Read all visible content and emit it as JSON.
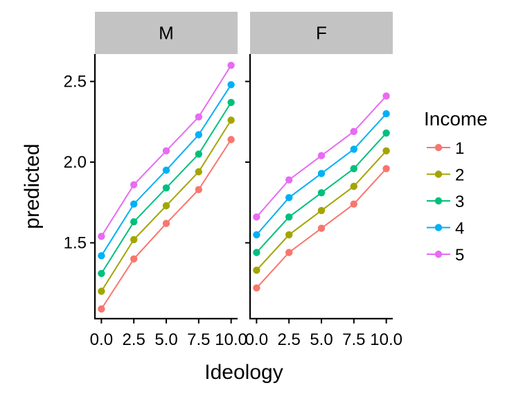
{
  "chart_data": {
    "type": "line",
    "facet_variable": "sex",
    "panels": [
      {
        "label": "M",
        "series": [
          {
            "name": "1",
            "x": [
              0.0,
              2.5,
              5.0,
              7.5,
              10.0
            ],
            "values": [
              1.09,
              1.4,
              1.62,
              1.83,
              2.14
            ]
          },
          {
            "name": "2",
            "x": [
              0.0,
              2.5,
              5.0,
              7.5,
              10.0
            ],
            "values": [
              1.2,
              1.52,
              1.73,
              1.94,
              2.26
            ]
          },
          {
            "name": "3",
            "x": [
              0.0,
              2.5,
              5.0,
              7.5,
              10.0
            ],
            "values": [
              1.31,
              1.63,
              1.84,
              2.05,
              2.37
            ]
          },
          {
            "name": "4",
            "x": [
              0.0,
              2.5,
              5.0,
              7.5,
              10.0
            ],
            "values": [
              1.42,
              1.74,
              1.95,
              2.17,
              2.48
            ]
          },
          {
            "name": "5",
            "x": [
              0.0,
              2.5,
              5.0,
              7.5,
              10.0
            ],
            "values": [
              1.54,
              1.86,
              2.07,
              2.28,
              2.6
            ]
          }
        ]
      },
      {
        "label": "F",
        "series": [
          {
            "name": "1",
            "x": [
              0.0,
              2.5,
              5.0,
              7.5,
              10.0
            ],
            "values": [
              1.22,
              1.44,
              1.59,
              1.74,
              1.96
            ]
          },
          {
            "name": "2",
            "x": [
              0.0,
              2.5,
              5.0,
              7.5,
              10.0
            ],
            "values": [
              1.33,
              1.55,
              1.7,
              1.85,
              2.07
            ]
          },
          {
            "name": "3",
            "x": [
              0.0,
              2.5,
              5.0,
              7.5,
              10.0
            ],
            "values": [
              1.44,
              1.66,
              1.81,
              1.96,
              2.18
            ]
          },
          {
            "name": "4",
            "x": [
              0.0,
              2.5,
              5.0,
              7.5,
              10.0
            ],
            "values": [
              1.55,
              1.78,
              1.93,
              2.08,
              2.3
            ]
          },
          {
            "name": "5",
            "x": [
              0.0,
              2.5,
              5.0,
              7.5,
              10.0
            ],
            "values": [
              1.66,
              1.89,
              2.04,
              2.19,
              2.41
            ]
          }
        ]
      }
    ],
    "xlabel": "Ideology",
    "ylabel": "predicted",
    "xlim": [
      -0.5,
      10.5
    ],
    "ylim": [
      1.03,
      2.67
    ],
    "xticks": [
      0.0,
      2.5,
      5.0,
      7.5,
      10.0
    ],
    "xtick_labels": [
      "0.0",
      "2.5",
      "5.0",
      "7.5",
      "10.0"
    ],
    "yticks": [
      1.5,
      2.0,
      2.5
    ],
    "ytick_labels": [
      "1.5",
      "2.0",
      "2.5"
    ],
    "legend": {
      "title": "Income",
      "position": "right",
      "entries": [
        "1",
        "2",
        "3",
        "4",
        "5"
      ]
    },
    "colors": [
      "#F8766D",
      "#A3A500",
      "#00BF7D",
      "#00B0F6",
      "#E76BF3"
    ],
    "strip_color": "#C3C3C3",
    "grid": false
  }
}
